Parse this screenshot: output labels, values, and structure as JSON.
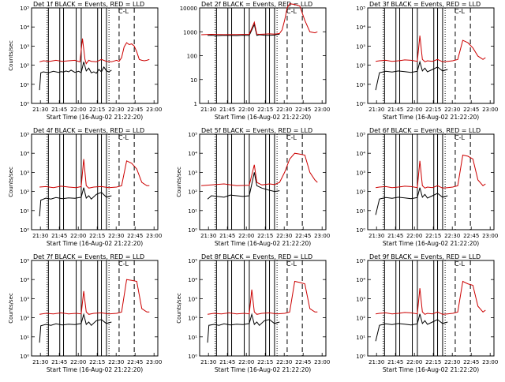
{
  "figure": {
    "background": "#ffffff",
    "colors": {
      "events": "#000000",
      "lld": "#cc0000",
      "markers": "#000000"
    },
    "xtick_labels": [
      "21:30",
      "21:45",
      "22:00",
      "22:15",
      "22:30",
      "22:45",
      "23:00"
    ]
  },
  "chart_data": [
    {
      "type": "line",
      "title": "Det 1f BLACK = Events, RED = LLD",
      "xlabel": "Start Time (16-Aug-02 21:22:20)",
      "ylabel": "Counts/sec",
      "log_y": true,
      "xlim": [
        "21:23",
        "23:03"
      ],
      "ylim": [
        1,
        100000
      ],
      "ytick_labels": [
        "10⁰",
        "10¹",
        "10²",
        "10³",
        "10⁴",
        "10⁵"
      ],
      "annotation": "C-L",
      "x_minutes_since": "21:22:20",
      "series": [
        {
          "name": "Events",
          "color": "#000000",
          "x": [
            7,
            8,
            10,
            14,
            18,
            22,
            24,
            26,
            28,
            30,
            32,
            35,
            38,
            40,
            42,
            44,
            46,
            48,
            50,
            52,
            54,
            56,
            58,
            60,
            62,
            64
          ],
          "y": [
            5,
            40,
            45,
            40,
            48,
            42,
            46,
            44,
            50,
            45,
            55,
            42,
            48,
            40,
            150,
            50,
            70,
            40,
            45,
            38,
            60,
            45,
            80,
            50,
            45,
            55
          ]
        },
        {
          "name": "LLD",
          "color": "#cc0000",
          "x": [
            7,
            10,
            15,
            20,
            25,
            30,
            35,
            39,
            41,
            43,
            44,
            46,
            48,
            52,
            56,
            60,
            64,
            68,
            70,
            72,
            74,
            76,
            78,
            80,
            82,
            84,
            86,
            88,
            90,
            92,
            94
          ],
          "y": [
            150,
            170,
            160,
            180,
            160,
            170,
            180,
            150,
            2500,
            200,
            120,
            180,
            160,
            150,
            200,
            160,
            150,
            180,
            160,
            250,
            900,
            1500,
            1200,
            1300,
            1000,
            500,
            200,
            180,
            170,
            180,
            200
          ]
        }
      ]
    },
    {
      "type": "line",
      "title": "Det 2f BLACK = Events, RED = LLD",
      "xlabel": "Start Time (16-Aug-02 21:22:20)",
      "ylabel": "",
      "log_y": true,
      "xlim": [
        "21:23",
        "23:03"
      ],
      "ylim": [
        1,
        10000
      ],
      "ytick_labels": [
        "1",
        "10",
        "100",
        "1000",
        "10000"
      ],
      "annotation": "C-L",
      "series": [
        {
          "name": "Events",
          "color": "#000000",
          "x": [
            7,
            10,
            15,
            20,
            25,
            30,
            35,
            40,
            44,
            46,
            48,
            52,
            56,
            60,
            64
          ],
          "y": [
            700,
            720,
            680,
            710,
            700,
            690,
            720,
            700,
            2000,
            700,
            750,
            720,
            710,
            730,
            800
          ]
        },
        {
          "name": "LLD",
          "color": "#cc0000",
          "x": [
            2,
            10,
            20,
            30,
            40,
            44,
            46,
            48,
            52,
            56,
            60,
            64,
            66,
            68,
            70,
            72,
            76,
            80,
            84,
            88,
            92,
            94
          ],
          "y": [
            750,
            780,
            760,
            770,
            780,
            2500,
            800,
            780,
            800,
            820,
            800,
            850,
            1200,
            3000,
            10000,
            15000,
            14000,
            12000,
            3000,
            1000,
            900,
            1000
          ]
        }
      ]
    },
    {
      "type": "line",
      "title": "Det 3f BLACK = Events, RED = LLD",
      "xlabel": "Start Time (16-Aug-02 21:22:20)",
      "ylabel": "",
      "log_y": true,
      "xlim": [
        "21:23",
        "23:03"
      ],
      "ylim": [
        1,
        100000
      ],
      "ytick_labels": [
        "10⁰",
        "10¹",
        "10²",
        "10³",
        "10⁴",
        "10⁵"
      ],
      "annotation": "C-L",
      "series": [
        {
          "name": "Events",
          "color": "#000000",
          "x": [
            7,
            10,
            15,
            20,
            25,
            30,
            35,
            40,
            42,
            44,
            46,
            48,
            52,
            56,
            60,
            64
          ],
          "y": [
            5,
            40,
            48,
            44,
            50,
            46,
            42,
            48,
            150,
            50,
            70,
            45,
            60,
            80,
            50,
            60
          ]
        },
        {
          "name": "LLD",
          "color": "#cc0000",
          "x": [
            7,
            10,
            15,
            20,
            25,
            30,
            35,
            40,
            42,
            44,
            46,
            48,
            52,
            56,
            60,
            64,
            68,
            72,
            76,
            80,
            84,
            88,
            92,
            94
          ],
          "y": [
            160,
            170,
            180,
            160,
            170,
            190,
            180,
            160,
            3500,
            200,
            150,
            170,
            160,
            200,
            150,
            160,
            170,
            200,
            2000,
            1500,
            800,
            300,
            200,
            250
          ]
        }
      ]
    },
    {
      "type": "line",
      "title": "Det 4f BLACK = Events, RED = LLD",
      "xlabel": "Start Time (16-Aug-02 21:22:20)",
      "ylabel": "Counts/sec",
      "log_y": true,
      "xlim": [
        "21:23",
        "23:03"
      ],
      "ylim": [
        1,
        100000
      ],
      "ytick_labels": [
        "10⁰",
        "10¹",
        "10²",
        "10³",
        "10⁴",
        "10⁵"
      ],
      "annotation": "C-L",
      "series": [
        {
          "name": "Events",
          "color": "#000000",
          "x": [
            7,
            8,
            12,
            16,
            20,
            25,
            30,
            35,
            40,
            42,
            44,
            46,
            48,
            52,
            56,
            60,
            64
          ],
          "y": [
            5,
            35,
            45,
            40,
            48,
            42,
            46,
            44,
            50,
            160,
            45,
            60,
            40,
            70,
            90,
            50,
            60
          ]
        },
        {
          "name": "LLD",
          "color": "#cc0000",
          "x": [
            7,
            12,
            18,
            24,
            30,
            36,
            40,
            42,
            44,
            46,
            50,
            56,
            62,
            68,
            72,
            76,
            80,
            84,
            88,
            92,
            94
          ],
          "y": [
            170,
            180,
            160,
            190,
            170,
            160,
            180,
            5000,
            200,
            150,
            170,
            180,
            160,
            170,
            200,
            4000,
            3000,
            1500,
            300,
            200,
            200
          ]
        }
      ]
    },
    {
      "type": "line",
      "title": "Det 5f BLACK = Events, RED = LLD",
      "xlabel": "Start Time (16-Aug-02 21:22:20)",
      "ylabel": "Counts/sec",
      "log_y": true,
      "xlim": [
        "21:23",
        "23:03"
      ],
      "ylim": [
        1,
        100000
      ],
      "ytick_labels": [
        "10⁰",
        "10¹",
        "10²",
        "10³",
        "10⁴",
        "10⁵"
      ],
      "annotation": "C-L",
      "series": [
        {
          "name": "Events",
          "color": "#000000",
          "x": [
            7,
            10,
            15,
            20,
            25,
            30,
            35,
            40,
            44,
            46,
            50,
            55,
            60,
            64
          ],
          "y": [
            40,
            60,
            55,
            50,
            65,
            60,
            55,
            60,
            1000,
            200,
            150,
            120,
            100,
            110
          ]
        },
        {
          "name": "LLD",
          "color": "#cc0000",
          "x": [
            2,
            10,
            20,
            30,
            40,
            44,
            46,
            50,
            56,
            60,
            64,
            68,
            72,
            76,
            80,
            84,
            88,
            92,
            94
          ],
          "y": [
            200,
            220,
            250,
            200,
            210,
            2500,
            300,
            220,
            250,
            230,
            300,
            1000,
            5000,
            10000,
            9000,
            8000,
            1000,
            400,
            300
          ]
        }
      ]
    },
    {
      "type": "line",
      "title": "Det 6f BLACK = Events, RED = LLD",
      "xlabel": "Start Time (16-Aug-02 21:22:20)",
      "ylabel": "",
      "log_y": true,
      "xlim": [
        "21:23",
        "23:03"
      ],
      "ylim": [
        1,
        100000
      ],
      "ytick_labels": [
        "10⁰",
        "10¹",
        "10²",
        "10³",
        "10⁴",
        "10⁵"
      ],
      "annotation": "C-L",
      "series": [
        {
          "name": "Events",
          "color": "#000000",
          "x": [
            7,
            10,
            15,
            20,
            25,
            30,
            35,
            40,
            42,
            44,
            46,
            48,
            52,
            56,
            60,
            64
          ],
          "y": [
            6,
            40,
            48,
            44,
            50,
            46,
            42,
            48,
            160,
            50,
            70,
            45,
            60,
            80,
            50,
            60
          ]
        },
        {
          "name": "LLD",
          "color": "#cc0000",
          "x": [
            7,
            10,
            15,
            20,
            25,
            30,
            35,
            40,
            42,
            44,
            46,
            48,
            52,
            56,
            60,
            64,
            68,
            72,
            76,
            80,
            84,
            88,
            92,
            94
          ],
          "y": [
            160,
            170,
            180,
            160,
            170,
            190,
            180,
            160,
            4000,
            200,
            150,
            170,
            160,
            200,
            150,
            160,
            170,
            200,
            8000,
            7000,
            5000,
            400,
            200,
            250
          ]
        }
      ]
    },
    {
      "type": "line",
      "title": "Det 7f BLACK = Events, RED = LLD",
      "xlabel": "Start Time (16-Aug-02 21:22:20)",
      "ylabel": "Counts/sec",
      "log_y": true,
      "xlim": [
        "21:23",
        "23:03"
      ],
      "ylim": [
        1,
        100000
      ],
      "ytick_labels": [
        "10⁰",
        "10¹",
        "10²",
        "10³",
        "10⁴",
        "10⁵"
      ],
      "annotation": "C-L",
      "series": [
        {
          "name": "Events",
          "color": "#000000",
          "x": [
            7,
            8,
            12,
            16,
            20,
            25,
            30,
            35,
            40,
            42,
            44,
            46,
            48,
            52,
            56,
            60,
            64
          ],
          "y": [
            5,
            38,
            45,
            40,
            48,
            42,
            46,
            44,
            50,
            150,
            45,
            60,
            40,
            70,
            80,
            50,
            60
          ]
        },
        {
          "name": "LLD",
          "color": "#cc0000",
          "x": [
            7,
            12,
            18,
            24,
            30,
            36,
            40,
            42,
            44,
            46,
            50,
            56,
            62,
            68,
            72,
            76,
            80,
            84,
            88,
            92,
            94
          ],
          "y": [
            150,
            170,
            160,
            180,
            160,
            170,
            160,
            2500,
            200,
            150,
            170,
            180,
            160,
            170,
            200,
            10000,
            9000,
            8000,
            300,
            200,
            200
          ]
        }
      ]
    },
    {
      "type": "line",
      "title": "Det 8f BLACK = Events, RED = LLD",
      "xlabel": "Start Time (16-Aug-02 21:22:20)",
      "ylabel": "Counts/sec",
      "log_y": true,
      "xlim": [
        "21:23",
        "23:03"
      ],
      "ylim": [
        1,
        100000
      ],
      "ytick_labels": [
        "10⁰",
        "10¹",
        "10²",
        "10³",
        "10⁴",
        "10⁵"
      ],
      "annotation": "C-L",
      "series": [
        {
          "name": "Events",
          "color": "#000000",
          "x": [
            7,
            8,
            12,
            16,
            20,
            25,
            30,
            35,
            40,
            42,
            44,
            46,
            48,
            52,
            56,
            60,
            64
          ],
          "y": [
            5,
            40,
            45,
            40,
            48,
            42,
            46,
            44,
            50,
            150,
            45,
            60,
            40,
            70,
            80,
            50,
            60
          ]
        },
        {
          "name": "LLD",
          "color": "#cc0000",
          "x": [
            7,
            12,
            18,
            24,
            30,
            36,
            40,
            42,
            44,
            46,
            50,
            56,
            62,
            68,
            72,
            76,
            80,
            84,
            88,
            92,
            94
          ],
          "y": [
            150,
            170,
            160,
            180,
            160,
            170,
            160,
            3000,
            200,
            150,
            170,
            180,
            160,
            170,
            200,
            8000,
            7000,
            6000,
            300,
            200,
            200
          ]
        }
      ]
    },
    {
      "type": "line",
      "title": "Det 9f BLACK = Events, RED = LLD",
      "xlabel": "Start Time (16-Aug-02 21:22:20)",
      "ylabel": "",
      "log_y": true,
      "xlim": [
        "21:23",
        "23:03"
      ],
      "ylim": [
        1,
        100000
      ],
      "ytick_labels": [
        "10⁰",
        "10¹",
        "10²",
        "10³",
        "10⁴",
        "10⁵"
      ],
      "annotation": "C-L",
      "series": [
        {
          "name": "Events",
          "color": "#000000",
          "x": [
            7,
            10,
            15,
            20,
            25,
            30,
            35,
            40,
            42,
            44,
            46,
            48,
            52,
            56,
            60,
            64
          ],
          "y": [
            6,
            40,
            48,
            44,
            50,
            46,
            42,
            48,
            160,
            50,
            70,
            45,
            60,
            80,
            50,
            60
          ]
        },
        {
          "name": "LLD",
          "color": "#cc0000",
          "x": [
            7,
            10,
            15,
            20,
            25,
            30,
            35,
            40,
            42,
            44,
            46,
            48,
            52,
            56,
            60,
            64,
            68,
            72,
            76,
            80,
            84,
            88,
            92,
            94
          ],
          "y": [
            160,
            170,
            180,
            160,
            170,
            190,
            180,
            160,
            3500,
            200,
            150,
            170,
            160,
            200,
            150,
            160,
            170,
            200,
            8000,
            6000,
            5000,
            400,
            200,
            250
          ]
        }
      ]
    }
  ]
}
